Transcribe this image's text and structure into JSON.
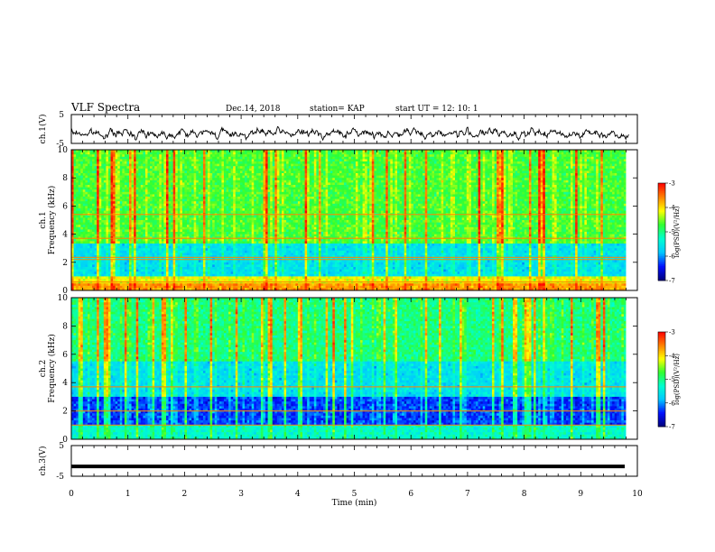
{
  "header": {
    "title": "VLF Spectra",
    "date": "Dec.14, 2018",
    "station": "station= KAP",
    "start": "start  UT =   12: 10: 1"
  },
  "chart_data": [
    {
      "type": "line",
      "name": "ch1-waveform",
      "ylabel": "ch.1(V)",
      "ylim": [
        -5,
        5
      ],
      "yticks": [
        "5",
        "-5"
      ],
      "xlim": [
        0,
        10
      ],
      "approx_range": [
        -3,
        0
      ]
    },
    {
      "type": "heatmap",
      "name": "ch1-spectrogram",
      "ylabel": "ch.1\nFrequency (kHz)",
      "xlim": [
        0,
        10
      ],
      "ylim": [
        0,
        10
      ],
      "yticks": [
        "0",
        "2",
        "4",
        "6",
        "8",
        "10"
      ],
      "data_end_min": 9.8,
      "colorbar": {
        "label": "log(PSD)(V²/Hz)",
        "ticks": [
          "-3",
          "-4",
          "-5",
          "-6",
          "-7"
        ],
        "range": [
          -7,
          -3
        ]
      },
      "level_profile": [
        {
          "band_khz": [
            0,
            0.5
          ],
          "log_psd": -3.7
        },
        {
          "band_khz": [
            0.5,
            1.0
          ],
          "log_psd": -4.2
        },
        {
          "band_khz": [
            1.0,
            3.3
          ],
          "log_psd": -5.6
        },
        {
          "band_khz": [
            3.3,
            10
          ],
          "log_psd": -4.7
        }
      ],
      "line_bands_khz": [
        0.6,
        2.2,
        2.35,
        3.7,
        5.4
      ]
    },
    {
      "type": "heatmap",
      "name": "ch2-spectrogram",
      "ylabel": "ch.2\nFrequency (kHz)",
      "xlim": [
        0,
        10
      ],
      "ylim": [
        0,
        10
      ],
      "yticks": [
        "0",
        "2",
        "4",
        "6",
        "8",
        "10"
      ],
      "data_end_min": 9.8,
      "colorbar": {
        "label": "log(PSD)(V²/Hz)",
        "ticks": [
          "-3",
          "-4",
          "-5",
          "-6",
          "-7"
        ],
        "range": [
          -7,
          -3
        ]
      },
      "level_profile": [
        {
          "band_khz": [
            0,
            1.0
          ],
          "log_psd": -5.3
        },
        {
          "band_khz": [
            1.0,
            3.0
          ],
          "log_psd": -6.3
        },
        {
          "band_khz": [
            3.0,
            5.5
          ],
          "log_psd": -5.6
        },
        {
          "band_khz": [
            5.5,
            10
          ],
          "log_psd": -5.0
        }
      ],
      "line_bands_khz": [
        1.0,
        2.0,
        3.7
      ]
    },
    {
      "type": "line",
      "name": "ch3-waveform",
      "ylabel": "ch.3(V)",
      "ylim": [
        -5,
        5
      ],
      "yticks": [
        "5",
        "-5"
      ],
      "xlim": [
        0,
        10
      ],
      "constant_value": -1.8
    }
  ],
  "xaxis": {
    "label": "Time  (min)",
    "ticks": [
      "0",
      "1",
      "2",
      "3",
      "4",
      "5",
      "6",
      "7",
      "8",
      "9",
      "10"
    ]
  },
  "colors": {
    "ink": "#000000",
    "colormap": [
      "#00007a",
      "#0010ff",
      "#00c8ff",
      "#00ffd0",
      "#30ff30",
      "#ffff00",
      "#ff8000",
      "#ff0000",
      "#ffffff"
    ]
  }
}
